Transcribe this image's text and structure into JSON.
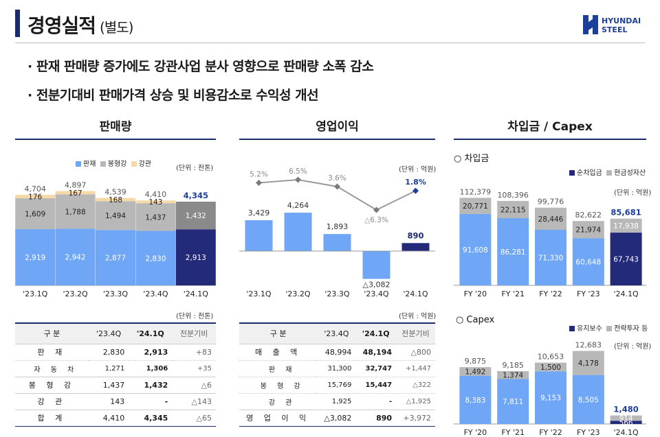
{
  "header": {
    "title": "경영실적",
    "subtitle": "(별도)",
    "logo_line1": "HYUNDAI",
    "logo_line2": "STEEL"
  },
  "bullets": [
    "· 판재 판매량 증가에도 강관사업 분사 영향으로 판매량 소폭 감소",
    "· 전분기대비 판매가격 상승 및 비용감소로 수익성 개선"
  ],
  "colors": {
    "blue": "#6fa6f5",
    "navy": "#232a7a",
    "gray": "#b8b8b8",
    "beige": "#f7d9a8",
    "accent": "#1b2a6b"
  },
  "sales": {
    "title": "판매량",
    "unit": "(단위 : 천톤)",
    "legend": [
      "판재",
      "봉형강",
      "강관"
    ],
    "table_unit": "(단위 : 천톤)",
    "table": {
      "headers": [
        "구 분",
        "'23.4Q",
        "'24.1Q",
        "전분기비"
      ],
      "rows": [
        {
          "label": "판 재",
          "a": "2,830",
          "b": "2,913",
          "c": "+83",
          "type": "row"
        },
        {
          "label": "자 동 차",
          "a": "1,271",
          "b": "1,306",
          "c": "+35",
          "type": "sub"
        },
        {
          "label": "봉 형 강",
          "a": "1,437",
          "b": "1,432",
          "c": "△6",
          "type": "row"
        },
        {
          "label": "강 관",
          "a": "143",
          "b": "-",
          "c": "△143",
          "type": "row"
        },
        {
          "label": "합 계",
          "a": "4,410",
          "b": "4,345",
          "c": "△65",
          "type": "row last"
        }
      ]
    }
  },
  "profit": {
    "title": "영업이익",
    "unit": "(단위 : 억원)",
    "table_unit": "(단위 : 억원)",
    "table": {
      "headers": [
        "구 분",
        "'23.4Q",
        "'24.1Q",
        "전분기비"
      ],
      "rows": [
        {
          "label": "매 출 액",
          "a": "48,994",
          "b": "48,194",
          "c": "△800",
          "type": "row"
        },
        {
          "label": "판 재",
          "a": "31,300",
          "b": "32,747",
          "c": "+1,447",
          "type": "sub"
        },
        {
          "label": "봉 형 강",
          "a": "15,769",
          "b": "15,447",
          "c": "△322",
          "type": "sub"
        },
        {
          "label": "강 관",
          "a": "1,925",
          "b": "-",
          "c": "△1,925",
          "type": "sub"
        },
        {
          "label": "영 업 이 익",
          "a": "△3,082",
          "b": "890",
          "c": "+3,972",
          "type": "row last"
        }
      ]
    }
  },
  "debt": {
    "title": "차입금 / Capex",
    "sub1": "○ 차입금",
    "legend1": [
      "순차입금",
      "현금성자산"
    ],
    "unit1": "(단위 : 억원)",
    "sub2": "○ Capex",
    "legend2": [
      "유지보수",
      "전략투자 등"
    ],
    "unit2": "(단위 : 억원)"
  },
  "chart_data": [
    {
      "type": "bar",
      "title": "판매량",
      "categories": [
        "'23.1Q",
        "'23.2Q",
        "'23.3Q",
        "'23.4Q",
        "'24.1Q"
      ],
      "series": [
        {
          "name": "판재",
          "values": [
            2919,
            2942,
            2877,
            2830,
            2913
          ]
        },
        {
          "name": "봉형강",
          "values": [
            1609,
            1788,
            1494,
            1437,
            1432
          ]
        },
        {
          "name": "강관",
          "values": [
            176,
            167,
            168,
            143,
            0
          ]
        }
      ],
      "totals": [
        4704,
        4897,
        4539,
        4410,
        4345
      ],
      "total_labels": [
        "4,704",
        "4,897",
        "4,539",
        "4,410",
        "4,345"
      ],
      "labels": [
        [
          "2,919",
          "2,942",
          "2,877",
          "2,830",
          "2,913"
        ],
        [
          "1,609",
          "1,788",
          "1,494",
          "1,437",
          "1,432"
        ],
        [
          "176",
          "167",
          "168",
          "143",
          ""
        ]
      ]
    },
    {
      "type": "bar",
      "title": "영업이익",
      "categories": [
        "'23.1Q",
        "'23.2Q",
        "'23.3Q",
        "'23.4Q",
        "'24.1Q"
      ],
      "values": [
        3429,
        4264,
        1893,
        -3082,
        890
      ],
      "value_labels": [
        "3,429",
        "4,264",
        "1,893",
        "△3,082",
        "890"
      ],
      "margin": [
        5.2,
        6.5,
        3.6,
        -6.3,
        1.8
      ],
      "margin_labels": [
        "5.2%",
        "6.5%",
        "3.6%",
        "△6.3%",
        "1.8%"
      ]
    },
    {
      "type": "bar",
      "title": "차입금",
      "categories": [
        "FY '20",
        "FY '21",
        "FY '22",
        "FY '23",
        "'24.1Q"
      ],
      "series": [
        {
          "name": "순차입금",
          "values": [
            91608,
            86281,
            71330,
            60648,
            67743
          ]
        },
        {
          "name": "현금성자산",
          "values": [
            20771,
            22115,
            28446,
            21974,
            17938
          ]
        }
      ],
      "totals": [
        112379,
        108396,
        99776,
        82622,
        85681
      ],
      "total_labels": [
        "112,379",
        "108,396",
        "99,776",
        "82,622",
        "85,681"
      ],
      "labels": [
        [
          "91,608",
          "86,281",
          "71,330",
          "60,648",
          "67,743"
        ],
        [
          "20,771",
          "22,115",
          "28,446",
          "21,974",
          "17,938"
        ]
      ]
    },
    {
      "type": "bar",
      "title": "Capex",
      "categories": [
        "FY '20",
        "FY '21",
        "FY '22",
        "FY '23",
        "'24.1Q"
      ],
      "series": [
        {
          "name": "유지보수",
          "values": [
            8383,
            7811,
            9153,
            8505,
            566
          ]
        },
        {
          "name": "전략투자 등",
          "values": [
            1492,
            1374,
            1500,
            4178,
            914
          ]
        }
      ],
      "totals": [
        9875,
        9185,
        10653,
        12683,
        1480
      ],
      "total_labels": [
        "9,875",
        "9,185",
        "10,653",
        "12,683",
        "1,480"
      ],
      "labels": [
        [
          "8,383",
          "7,811",
          "9,153",
          "8,505",
          "566"
        ],
        [
          "1,492",
          "1,374",
          "1,500",
          "4,178",
          "914"
        ]
      ]
    }
  ]
}
